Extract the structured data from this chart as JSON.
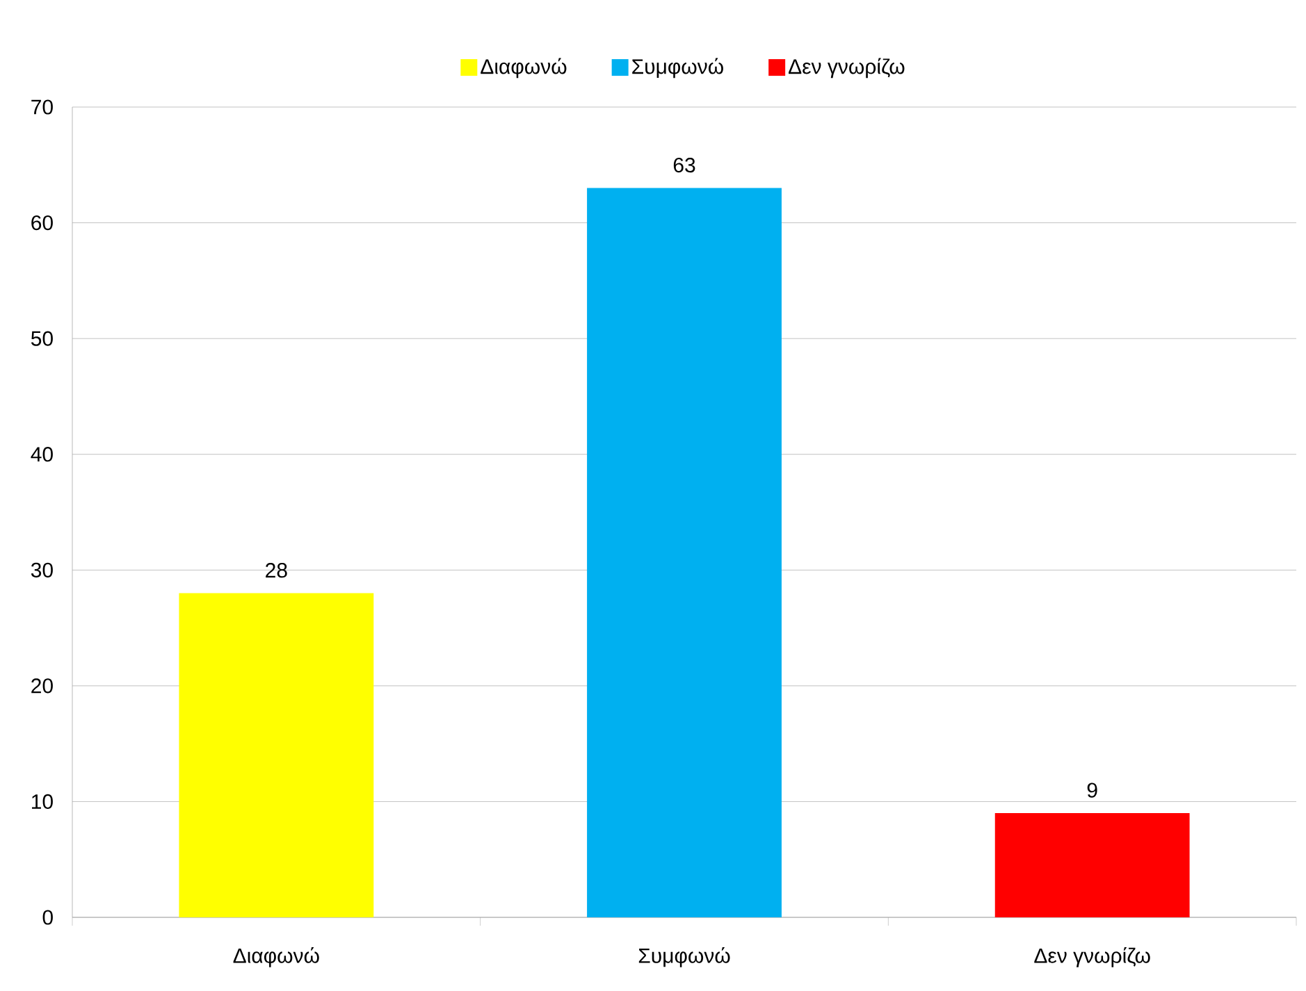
{
  "chart_data": {
    "type": "bar",
    "categories": [
      "Διαφωνώ",
      "Συμφωνώ",
      "Δεν γνωρίζω"
    ],
    "series": [
      {
        "name": "Διαφωνώ",
        "color": "#ffff00",
        "values": [
          28,
          null,
          null
        ]
      },
      {
        "name": "Συμφωνώ",
        "color": "#00b0f0",
        "values": [
          null,
          63,
          null
        ]
      },
      {
        "name": "Δεν γνωρίζω",
        "color": "#ff0000",
        "values": [
          null,
          null,
          9
        ]
      }
    ],
    "ylim": [
      0,
      70
    ],
    "yticks": [
      0,
      10,
      20,
      30,
      40,
      50,
      60,
      70
    ],
    "grid": "y",
    "legend": "top",
    "data_labels": true
  }
}
